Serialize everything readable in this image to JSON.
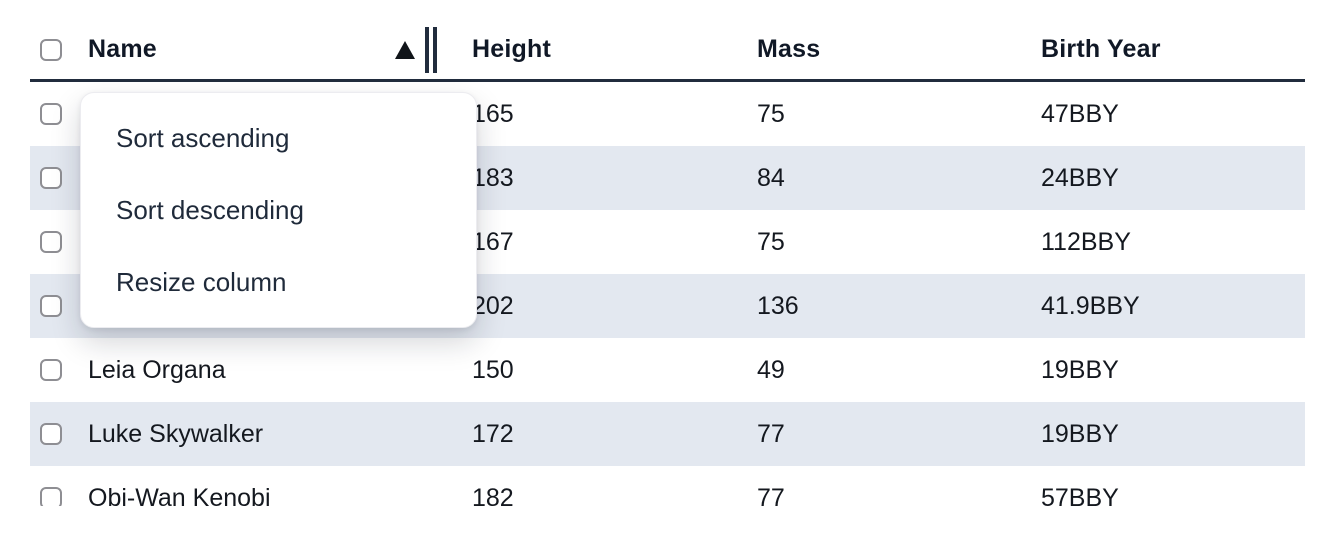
{
  "table": {
    "columns": [
      {
        "label": "Name",
        "sorted": "ascending"
      },
      {
        "label": "Height"
      },
      {
        "label": "Mass"
      },
      {
        "label": "Birth Year"
      }
    ],
    "rows": [
      {
        "name": "",
        "height": "165",
        "mass": "75",
        "birth_year": "47BBY"
      },
      {
        "name": "",
        "height": "183",
        "mass": "84",
        "birth_year": "24BBY"
      },
      {
        "name": "",
        "height": "167",
        "mass": "75",
        "birth_year": "112BBY"
      },
      {
        "name": "",
        "height": "202",
        "mass": "136",
        "birth_year": "41.9BBY"
      },
      {
        "name": "Leia Organa",
        "height": "150",
        "mass": "49",
        "birth_year": "19BBY"
      },
      {
        "name": "Luke Skywalker",
        "height": "172",
        "mass": "77",
        "birth_year": "19BBY"
      },
      {
        "name": "Obi-Wan Kenobi",
        "height": "182",
        "mass": "77",
        "birth_year": "57BBY"
      }
    ]
  },
  "context_menu": {
    "items": [
      {
        "label": "Sort ascending"
      },
      {
        "label": "Sort descending"
      },
      {
        "label": "Resize column"
      }
    ]
  },
  "colors": {
    "stripe": "#e3e8f0",
    "header_border": "#212c3d",
    "text": "#14181f",
    "menu_text": "#1f2a3a"
  }
}
